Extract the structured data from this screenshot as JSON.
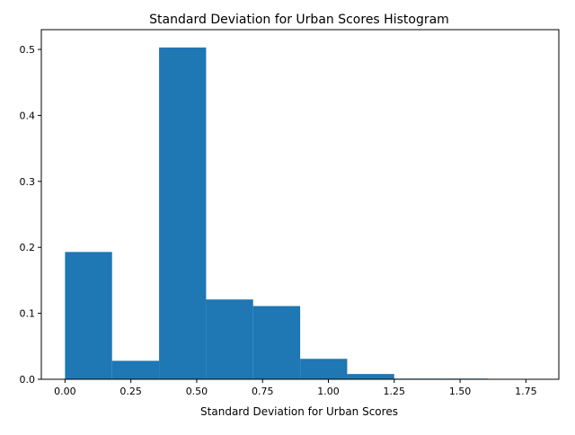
{
  "chart_data": {
    "type": "bar",
    "title": "Standard Deviation for Urban Scores Histogram",
    "xlabel": "Standard Deviation for Urban Scores",
    "ylabel": "",
    "bins": [
      {
        "start": 0.0,
        "end": 0.1786,
        "value": 0.193
      },
      {
        "start": 0.1786,
        "end": 0.3571,
        "value": 0.028
      },
      {
        "start": 0.3571,
        "end": 0.5357,
        "value": 0.503
      },
      {
        "start": 0.5357,
        "end": 0.7143,
        "value": 0.121
      },
      {
        "start": 0.7143,
        "end": 0.8929,
        "value": 0.111
      },
      {
        "start": 0.8929,
        "end": 1.0714,
        "value": 0.031
      },
      {
        "start": 1.0714,
        "end": 1.25,
        "value": 0.008
      },
      {
        "start": 1.25,
        "end": 1.4286,
        "value": 0.001
      },
      {
        "start": 1.4286,
        "end": 1.6071,
        "value": 0.001
      },
      {
        "start": 1.6071,
        "end": 1.7857,
        "value": 0.0
      }
    ],
    "xlim": [
      -0.09,
      1.875
    ],
    "ylim": [
      0,
      0.53
    ],
    "xticks": [
      0.0,
      0.25,
      0.5,
      0.75,
      1.0,
      1.25,
      1.5,
      1.75
    ],
    "xtick_labels": [
      "0.00",
      "0.25",
      "0.50",
      "0.75",
      "1.00",
      "1.25",
      "1.50",
      "1.75"
    ],
    "yticks": [
      0.0,
      0.1,
      0.2,
      0.3,
      0.4,
      0.5
    ],
    "ytick_labels": [
      "0.0",
      "0.1",
      "0.2",
      "0.3",
      "0.4",
      "0.5"
    ],
    "grid": false,
    "bar_color": "#1f77b4"
  }
}
